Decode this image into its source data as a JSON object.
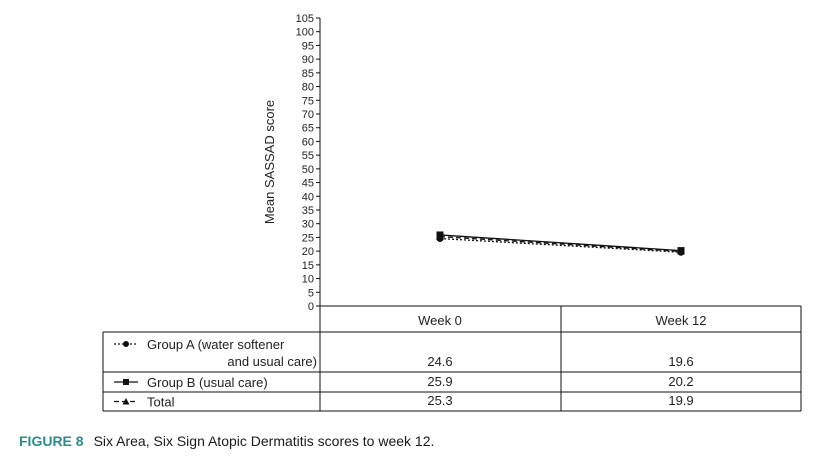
{
  "chart_data": {
    "type": "line",
    "ylabel": "Mean SASSAD score",
    "xlabel": "",
    "ylim": [
      0,
      105
    ],
    "ytick_step": 5,
    "categories": [
      "Week 0",
      "Week 12"
    ],
    "series": [
      {
        "name_line1": "Group A (water softener",
        "name_line2": "and usual care)",
        "marker": "circle",
        "dash": "dotted",
        "values": [
          24.6,
          19.6
        ],
        "value_labels": [
          "24.6",
          "19.6"
        ]
      },
      {
        "name_line1": "Group B (usual care)",
        "marker": "square",
        "dash": "solid",
        "values": [
          25.9,
          20.2
        ],
        "value_labels": [
          "25.9",
          "20.2"
        ]
      },
      {
        "name_line1": "Total",
        "marker": "triangle",
        "dash": "dashed",
        "values": [
          25.3,
          19.9
        ],
        "value_labels": [
          "25.3",
          "19.9"
        ]
      }
    ],
    "line_color": "#111111"
  },
  "caption": {
    "figure_label": "FIGURE 8",
    "text": "Six Area, Six Sign Atopic Dermatitis scores to week 12."
  }
}
